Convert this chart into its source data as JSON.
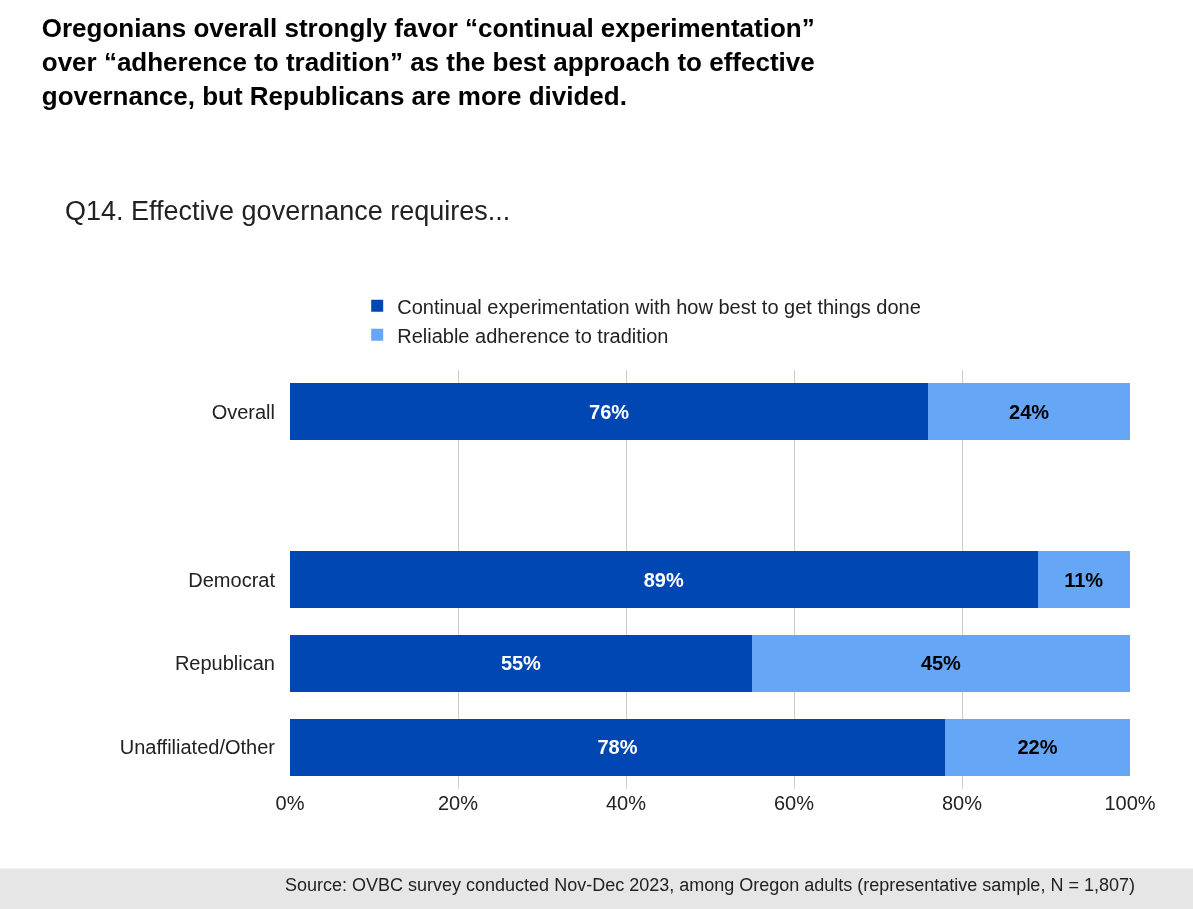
{
  "chart_data": {
    "type": "bar",
    "orientation": "horizontal",
    "stacked": true,
    "title": "Oregonians overall strongly favor “continual experimentation” over “adherence to tradition” as the best approach to effective governance, but Republicans are more divided.",
    "subtitle": "Q14. Effective governance requires...",
    "categories": [
      "Overall",
      null,
      "Democrat",
      "Republican",
      "Unaffiliated/Other"
    ],
    "series": [
      {
        "name": "Continual experimentation with how best to get things done",
        "color": "#0047b3",
        "values": [
          76,
          null,
          89,
          55,
          78
        ],
        "value_labels": [
          "76%",
          null,
          "89%",
          "55%",
          "78%"
        ]
      },
      {
        "name": "Reliable adherence to tradition",
        "color": "#66a6f7",
        "values": [
          24,
          null,
          11,
          45,
          22
        ],
        "value_labels": [
          "24%",
          null,
          "11%",
          "45%",
          "22%"
        ]
      }
    ],
    "xlim": [
      0,
      100
    ],
    "xticks": [
      {
        "value": 0,
        "label": "0%"
      },
      {
        "value": 20,
        "label": "20%"
      },
      {
        "value": 40,
        "label": "40%"
      },
      {
        "value": 60,
        "label": "60%"
      },
      {
        "value": 80,
        "label": "80%"
      },
      {
        "value": 100,
        "label": "100%"
      }
    ],
    "grid": "x",
    "legend": "top",
    "annotations": [
      "Source: OVBC survey conducted Nov-Dec 2023, among Oregon adults (representative sample, N = 1,807)"
    ]
  }
}
